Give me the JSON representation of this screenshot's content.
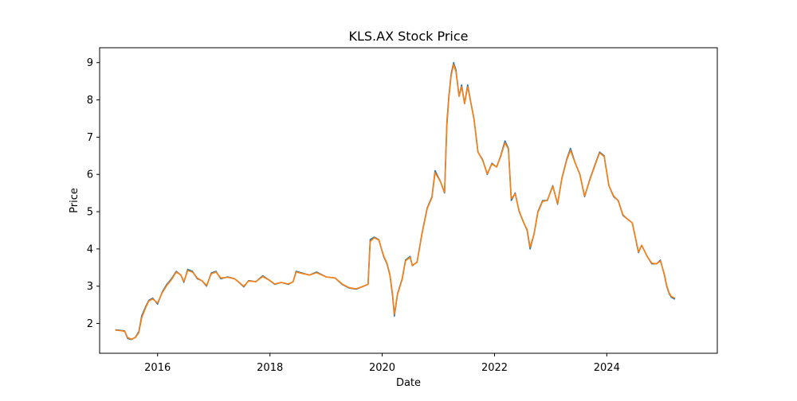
{
  "chart_data": {
    "type": "line",
    "title": "KLS.AX Stock Price",
    "xlabel": "Date",
    "ylabel": "Price",
    "x_ticks": [
      "2016",
      "2018",
      "2020",
      "2022",
      "2024"
    ],
    "y_ticks": [
      2,
      3,
      4,
      5,
      6,
      7,
      8,
      9
    ],
    "xlim": [
      "2014-12-20",
      "2025-12-20"
    ],
    "ylim": [
      1.2,
      9.4
    ],
    "grid": false,
    "legend": "none",
    "series": [
      {
        "color": "#1f77b4",
        "points": [
          [
            "2015-04-01",
            1.83
          ],
          [
            "2015-05-01",
            1.82
          ],
          [
            "2015-06-01",
            1.8
          ],
          [
            "2015-06-20",
            1.6
          ],
          [
            "2015-07-15",
            1.57
          ],
          [
            "2015-08-10",
            1.63
          ],
          [
            "2015-09-01",
            1.78
          ],
          [
            "2015-09-20",
            2.2
          ],
          [
            "2015-10-15",
            2.45
          ],
          [
            "2015-11-05",
            2.62
          ],
          [
            "2015-12-01",
            2.68
          ],
          [
            "2016-01-01",
            2.52
          ],
          [
            "2016-02-01",
            2.85
          ],
          [
            "2016-03-01",
            3.05
          ],
          [
            "2016-04-01",
            3.2
          ],
          [
            "2016-05-01",
            3.4
          ],
          [
            "2016-06-01",
            3.3
          ],
          [
            "2016-06-20",
            3.1
          ],
          [
            "2016-07-15",
            3.45
          ],
          [
            "2016-08-15",
            3.4
          ],
          [
            "2016-09-15",
            3.2
          ],
          [
            "2016-10-15",
            3.15
          ],
          [
            "2016-11-15",
            3.0
          ],
          [
            "2016-12-15",
            3.35
          ],
          [
            "2017-01-15",
            3.4
          ],
          [
            "2017-02-15",
            3.2
          ],
          [
            "2017-04-01",
            3.25
          ],
          [
            "2017-05-15",
            3.2
          ],
          [
            "2017-06-15",
            3.1
          ],
          [
            "2017-07-15",
            2.98
          ],
          [
            "2017-08-15",
            3.15
          ],
          [
            "2017-10-01",
            3.12
          ],
          [
            "2017-11-15",
            3.28
          ],
          [
            "2018-01-01",
            3.15
          ],
          [
            "2018-02-01",
            3.05
          ],
          [
            "2018-03-15",
            3.1
          ],
          [
            "2018-05-01",
            3.05
          ],
          [
            "2018-06-01",
            3.12
          ],
          [
            "2018-06-20",
            3.4
          ],
          [
            "2018-08-01",
            3.35
          ],
          [
            "2018-09-15",
            3.3
          ],
          [
            "2018-11-01",
            3.38
          ],
          [
            "2019-01-01",
            3.25
          ],
          [
            "2019-03-01",
            3.22
          ],
          [
            "2019-04-15",
            3.05
          ],
          [
            "2019-06-01",
            2.95
          ],
          [
            "2019-07-15",
            2.92
          ],
          [
            "2019-09-01",
            3.0
          ],
          [
            "2019-10-01",
            3.05
          ],
          [
            "2019-10-15",
            4.25
          ],
          [
            "2019-11-10",
            4.32
          ],
          [
            "2019-12-10",
            4.25
          ],
          [
            "2020-01-10",
            3.8
          ],
          [
            "2020-02-01",
            3.6
          ],
          [
            "2020-02-20",
            3.3
          ],
          [
            "2020-03-10",
            2.7
          ],
          [
            "2020-03-20",
            2.2
          ],
          [
            "2020-04-10",
            2.8
          ],
          [
            "2020-05-10",
            3.2
          ],
          [
            "2020-06-01",
            3.7
          ],
          [
            "2020-07-01",
            3.8
          ],
          [
            "2020-07-15",
            3.55
          ],
          [
            "2020-08-15",
            3.65
          ],
          [
            "2020-09-15",
            4.4
          ],
          [
            "2020-10-20",
            5.1
          ],
          [
            "2020-11-20",
            5.4
          ],
          [
            "2020-12-10",
            6.1
          ],
          [
            "2021-01-15",
            5.8
          ],
          [
            "2021-02-10",
            5.5
          ],
          [
            "2021-02-25",
            7.4
          ],
          [
            "2021-03-10",
            8.1
          ],
          [
            "2021-03-25",
            8.7
          ],
          [
            "2021-04-10",
            9.0
          ],
          [
            "2021-04-25",
            8.8
          ],
          [
            "2021-05-15",
            8.1
          ],
          [
            "2021-06-01",
            8.4
          ],
          [
            "2021-06-20",
            7.9
          ],
          [
            "2021-07-10",
            8.4
          ],
          [
            "2021-08-01",
            7.9
          ],
          [
            "2021-08-20",
            7.5
          ],
          [
            "2021-09-15",
            6.6
          ],
          [
            "2021-10-15",
            6.4
          ],
          [
            "2021-11-15",
            6.0
          ],
          [
            "2021-12-15",
            6.3
          ],
          [
            "2022-01-15",
            6.2
          ],
          [
            "2022-02-10",
            6.5
          ],
          [
            "2022-03-10",
            6.9
          ],
          [
            "2022-04-01",
            6.7
          ],
          [
            "2022-04-20",
            5.3
          ],
          [
            "2022-05-15",
            5.5
          ],
          [
            "2022-06-10",
            5.0
          ],
          [
            "2022-07-10",
            4.7
          ],
          [
            "2022-08-01",
            4.5
          ],
          [
            "2022-08-20",
            4.0
          ],
          [
            "2022-09-15",
            4.4
          ],
          [
            "2022-10-10",
            5.0
          ],
          [
            "2022-11-10",
            5.3
          ],
          [
            "2022-12-10",
            5.3
          ],
          [
            "2023-01-15",
            5.7
          ],
          [
            "2023-02-15",
            5.2
          ],
          [
            "2023-03-15",
            5.9
          ],
          [
            "2023-04-15",
            6.4
          ],
          [
            "2023-05-10",
            6.7
          ],
          [
            "2023-06-10",
            6.3
          ],
          [
            "2023-07-10",
            6.0
          ],
          [
            "2023-08-10",
            5.4
          ],
          [
            "2023-09-15",
            5.9
          ],
          [
            "2023-10-20",
            6.3
          ],
          [
            "2023-11-15",
            6.6
          ],
          [
            "2023-12-15",
            6.5
          ],
          [
            "2024-01-15",
            5.7
          ],
          [
            "2024-02-15",
            5.4
          ],
          [
            "2024-03-15",
            5.3
          ],
          [
            "2024-04-15",
            4.9
          ],
          [
            "2024-05-15",
            4.8
          ],
          [
            "2024-06-15",
            4.7
          ],
          [
            "2024-07-10",
            4.2
          ],
          [
            "2024-07-25",
            3.9
          ],
          [
            "2024-08-15",
            4.1
          ],
          [
            "2024-09-20",
            3.8
          ],
          [
            "2024-10-20",
            3.6
          ],
          [
            "2024-11-20",
            3.6
          ],
          [
            "2024-12-15",
            3.7
          ],
          [
            "2025-01-10",
            3.3
          ],
          [
            "2025-01-25",
            3.0
          ],
          [
            "2025-02-10",
            2.8
          ],
          [
            "2025-02-25",
            2.7
          ],
          [
            "2025-03-20",
            2.65
          ]
        ]
      },
      {
        "color": "#ff7f0e",
        "points": [
          [
            "2015-04-01",
            1.82
          ],
          [
            "2015-05-01",
            1.81
          ],
          [
            "2015-06-01",
            1.79
          ],
          [
            "2015-06-20",
            1.62
          ],
          [
            "2015-07-15",
            1.58
          ],
          [
            "2015-08-10",
            1.62
          ],
          [
            "2015-09-01",
            1.75
          ],
          [
            "2015-09-20",
            2.15
          ],
          [
            "2015-10-15",
            2.42
          ],
          [
            "2015-11-05",
            2.6
          ],
          [
            "2015-12-01",
            2.66
          ],
          [
            "2016-01-01",
            2.55
          ],
          [
            "2016-02-01",
            2.83
          ],
          [
            "2016-03-01",
            3.02
          ],
          [
            "2016-04-01",
            3.18
          ],
          [
            "2016-05-01",
            3.38
          ],
          [
            "2016-06-01",
            3.3
          ],
          [
            "2016-06-20",
            3.12
          ],
          [
            "2016-07-15",
            3.42
          ],
          [
            "2016-08-15",
            3.38
          ],
          [
            "2016-09-15",
            3.22
          ],
          [
            "2016-10-15",
            3.15
          ],
          [
            "2016-11-15",
            3.02
          ],
          [
            "2016-12-15",
            3.33
          ],
          [
            "2017-01-15",
            3.38
          ],
          [
            "2017-02-15",
            3.22
          ],
          [
            "2017-04-01",
            3.24
          ],
          [
            "2017-05-15",
            3.2
          ],
          [
            "2017-06-15",
            3.1
          ],
          [
            "2017-07-15",
            3.0
          ],
          [
            "2017-08-15",
            3.14
          ],
          [
            "2017-10-01",
            3.12
          ],
          [
            "2017-11-15",
            3.26
          ],
          [
            "2018-01-01",
            3.15
          ],
          [
            "2018-02-01",
            3.06
          ],
          [
            "2018-03-15",
            3.1
          ],
          [
            "2018-05-01",
            3.06
          ],
          [
            "2018-06-01",
            3.12
          ],
          [
            "2018-06-20",
            3.38
          ],
          [
            "2018-08-01",
            3.34
          ],
          [
            "2018-09-15",
            3.3
          ],
          [
            "2018-11-01",
            3.36
          ],
          [
            "2019-01-01",
            3.25
          ],
          [
            "2019-03-01",
            3.22
          ],
          [
            "2019-04-15",
            3.06
          ],
          [
            "2019-06-01",
            2.96
          ],
          [
            "2019-07-15",
            2.93
          ],
          [
            "2019-09-01",
            3.0
          ],
          [
            "2019-10-01",
            3.05
          ],
          [
            "2019-10-15",
            4.2
          ],
          [
            "2019-11-10",
            4.3
          ],
          [
            "2019-12-10",
            4.24
          ],
          [
            "2020-01-10",
            3.82
          ],
          [
            "2020-02-01",
            3.62
          ],
          [
            "2020-02-20",
            3.32
          ],
          [
            "2020-03-10",
            2.75
          ],
          [
            "2020-03-20",
            2.25
          ],
          [
            "2020-04-10",
            2.78
          ],
          [
            "2020-05-10",
            3.18
          ],
          [
            "2020-06-01",
            3.68
          ],
          [
            "2020-07-01",
            3.78
          ],
          [
            "2020-07-15",
            3.56
          ],
          [
            "2020-08-15",
            3.64
          ],
          [
            "2020-09-15",
            4.38
          ],
          [
            "2020-10-20",
            5.08
          ],
          [
            "2020-11-20",
            5.38
          ],
          [
            "2020-12-10",
            6.05
          ],
          [
            "2021-01-15",
            5.8
          ],
          [
            "2021-02-10",
            5.52
          ],
          [
            "2021-02-25",
            7.3
          ],
          [
            "2021-03-10",
            8.05
          ],
          [
            "2021-03-25",
            8.65
          ],
          [
            "2021-04-10",
            8.95
          ],
          [
            "2021-04-25",
            8.75
          ],
          [
            "2021-05-15",
            8.1
          ],
          [
            "2021-06-01",
            8.35
          ],
          [
            "2021-06-20",
            7.9
          ],
          [
            "2021-07-10",
            8.35
          ],
          [
            "2021-08-01",
            7.9
          ],
          [
            "2021-08-20",
            7.48
          ],
          [
            "2021-09-15",
            6.6
          ],
          [
            "2021-10-15",
            6.38
          ],
          [
            "2021-11-15",
            6.02
          ],
          [
            "2021-12-15",
            6.28
          ],
          [
            "2022-01-15",
            6.2
          ],
          [
            "2022-02-10",
            6.48
          ],
          [
            "2022-03-10",
            6.85
          ],
          [
            "2022-04-01",
            6.68
          ],
          [
            "2022-04-20",
            5.35
          ],
          [
            "2022-05-15",
            5.48
          ],
          [
            "2022-06-10",
            5.02
          ],
          [
            "2022-07-10",
            4.7
          ],
          [
            "2022-08-01",
            4.52
          ],
          [
            "2022-08-20",
            4.05
          ],
          [
            "2022-09-15",
            4.4
          ],
          [
            "2022-10-10",
            4.98
          ],
          [
            "2022-11-10",
            5.28
          ],
          [
            "2022-12-10",
            5.3
          ],
          [
            "2023-01-15",
            5.68
          ],
          [
            "2023-02-15",
            5.22
          ],
          [
            "2023-03-15",
            5.88
          ],
          [
            "2023-04-15",
            6.38
          ],
          [
            "2023-05-10",
            6.65
          ],
          [
            "2023-06-10",
            6.3
          ],
          [
            "2023-07-10",
            6.0
          ],
          [
            "2023-08-10",
            5.42
          ],
          [
            "2023-09-15",
            5.88
          ],
          [
            "2023-10-20",
            6.28
          ],
          [
            "2023-11-15",
            6.58
          ],
          [
            "2023-12-15",
            6.48
          ],
          [
            "2024-01-15",
            5.7
          ],
          [
            "2024-02-15",
            5.42
          ],
          [
            "2024-03-15",
            5.3
          ],
          [
            "2024-04-15",
            4.92
          ],
          [
            "2024-05-15",
            4.8
          ],
          [
            "2024-06-15",
            4.7
          ],
          [
            "2024-07-10",
            4.22
          ],
          [
            "2024-07-25",
            3.92
          ],
          [
            "2024-08-15",
            4.1
          ],
          [
            "2024-09-20",
            3.8
          ],
          [
            "2024-10-20",
            3.62
          ],
          [
            "2024-11-20",
            3.6
          ],
          [
            "2024-12-15",
            3.68
          ],
          [
            "2025-01-10",
            3.32
          ],
          [
            "2025-01-25",
            3.02
          ],
          [
            "2025-02-10",
            2.82
          ],
          [
            "2025-02-25",
            2.72
          ],
          [
            "2025-03-20",
            2.68
          ]
        ]
      }
    ]
  }
}
